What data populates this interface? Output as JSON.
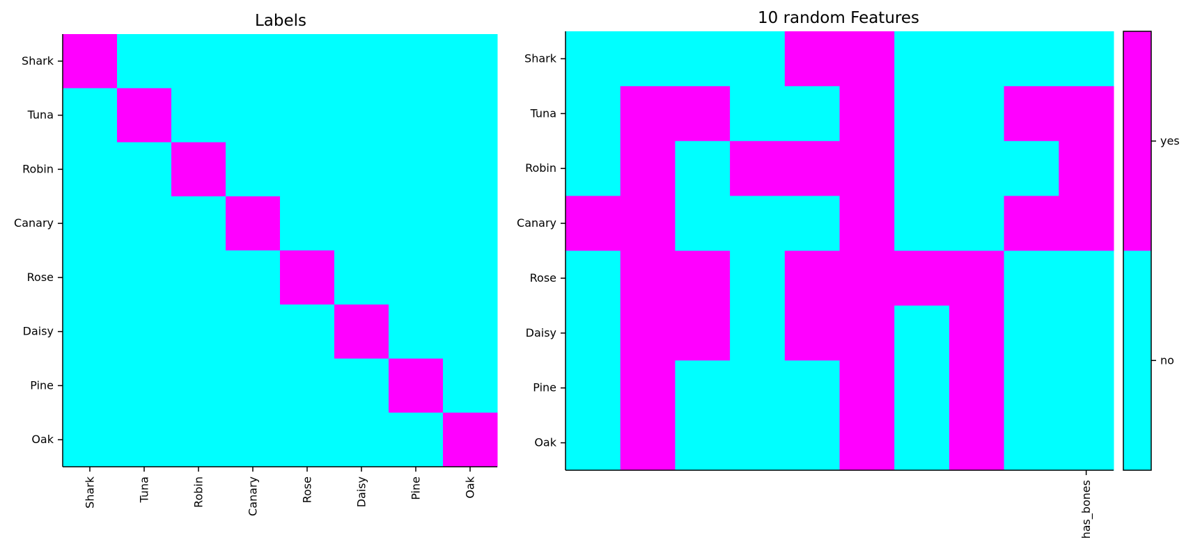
{
  "chart_data": [
    {
      "type": "heatmap",
      "title": "Labels",
      "rows": [
        "Shark",
        "Tuna",
        "Robin",
        "Canary",
        "Rose",
        "Daisy",
        "Pine",
        "Oak"
      ],
      "columns": [
        "Shark",
        "Tuna",
        "Robin",
        "Canary",
        "Rose",
        "Daisy",
        "Pine",
        "Oak"
      ],
      "column_tick_labels": [
        "Shark",
        "Tuna",
        "Robin",
        "Canary",
        "Rose",
        "Daisy",
        "Pine",
        "Oak"
      ],
      "values": [
        [
          1,
          0,
          0,
          0,
          0,
          0,
          0,
          0
        ],
        [
          0,
          1,
          0,
          0,
          0,
          0,
          0,
          0
        ],
        [
          0,
          0,
          1,
          0,
          0,
          0,
          0,
          0
        ],
        [
          0,
          0,
          0,
          1,
          0,
          0,
          0,
          0
        ],
        [
          0,
          0,
          0,
          0,
          1,
          0,
          0,
          0
        ],
        [
          0,
          0,
          0,
          0,
          0,
          1,
          0,
          0
        ],
        [
          0,
          0,
          0,
          0,
          0,
          0,
          1,
          0
        ],
        [
          0,
          0,
          0,
          0,
          0,
          0,
          0,
          1
        ]
      ],
      "xlabel": "",
      "ylabel": ""
    },
    {
      "type": "heatmap",
      "title": "10 random Features",
      "rows": [
        "Shark",
        "Tuna",
        "Robin",
        "Canary",
        "Rose",
        "Daisy",
        "Pine",
        "Oak"
      ],
      "column_count": 10,
      "column_tick_labels": [
        "",
        "",
        "",
        "",
        "",
        "",
        "",
        "",
        "",
        "has_bones"
      ],
      "values": [
        [
          0,
          0,
          0,
          0,
          1,
          1,
          0,
          0,
          0,
          0
        ],
        [
          0,
          1,
          1,
          0,
          0,
          1,
          0,
          0,
          1,
          1
        ],
        [
          0,
          1,
          0,
          1,
          1,
          1,
          0,
          0,
          0,
          1
        ],
        [
          1,
          1,
          0,
          0,
          0,
          1,
          0,
          0,
          1,
          1
        ],
        [
          0,
          1,
          1,
          0,
          1,
          1,
          1,
          1,
          0,
          0
        ],
        [
          0,
          1,
          1,
          0,
          1,
          1,
          0,
          1,
          0,
          0
        ],
        [
          0,
          1,
          0,
          0,
          0,
          1,
          0,
          1,
          0,
          0
        ],
        [
          0,
          1,
          0,
          0,
          0,
          1,
          0,
          1,
          0,
          0
        ]
      ],
      "xlabel": "",
      "ylabel": ""
    }
  ],
  "colorbar": {
    "labels": [
      "yes",
      "no"
    ],
    "values": [
      1,
      0
    ]
  },
  "colors": {
    "yes": "#ff00ff",
    "no": "#00ffff",
    "axis": "#000000",
    "background": "#ffffff"
  }
}
